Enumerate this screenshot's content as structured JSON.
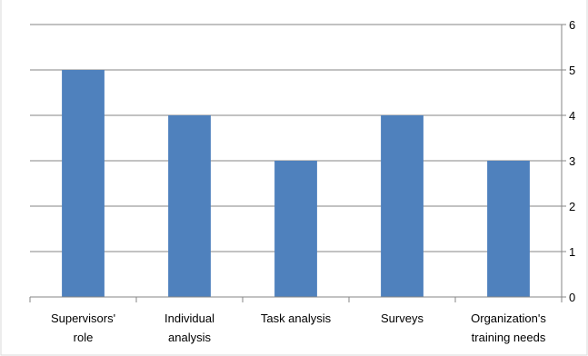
{
  "chart_data": {
    "type": "bar",
    "categories": [
      [
        "Supervisors'",
        "role"
      ],
      [
        "Individual",
        "analysis"
      ],
      [
        "Task analysis"
      ],
      [
        "Surveys"
      ],
      [
        "Organization's",
        "training needs"
      ]
    ],
    "values": [
      5,
      4,
      3,
      4,
      3
    ],
    "title": "",
    "xlabel": "",
    "ylabel": "",
    "ylim": [
      0,
      6
    ],
    "yticks": [
      "0",
      "1",
      "2",
      "3",
      "4",
      "5",
      "6"
    ],
    "y_axis_position": "right",
    "grid": true,
    "legend": "none",
    "bar_color": "#4f81bd",
    "grid_color": "#868686",
    "axis_color": "#868686"
  }
}
